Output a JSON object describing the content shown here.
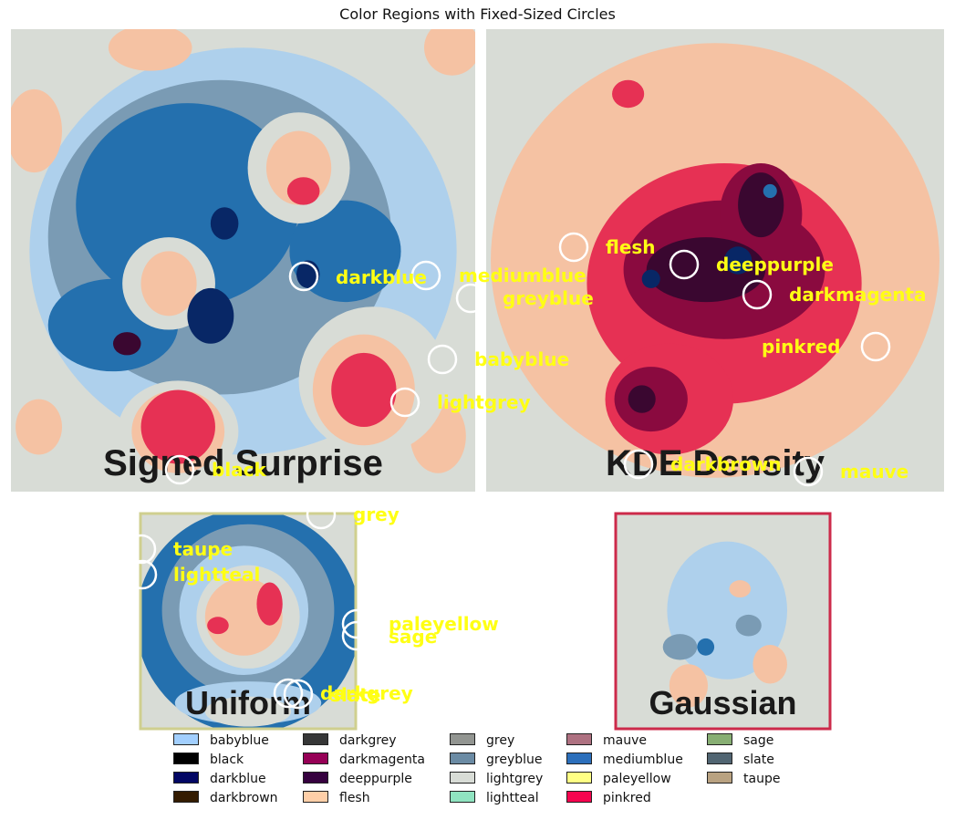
{
  "title": "Color Regions with Fixed-Sized Circles",
  "colors": {
    "babyblue": "#a2cffe",
    "black": "#000000",
    "darkblue": "#030764",
    "darkbrown": "#341c02",
    "darkgrey": "#363737",
    "darkmagenta": "#960056",
    "deeppurple": "#36013f",
    "flesh": "#ffcfa8",
    "grey": "#929591",
    "greyblue": "#6b8ba4",
    "lightgrey": "#d8dcd6",
    "lightteal": "#90e4c1",
    "mauve": "#ae7181",
    "mediumblue": "#2c6fbb",
    "paleyellow": "#ffff84",
    "pinkred": "#f5054f",
    "sage": "#87ae73",
    "slate": "#516572",
    "taupe": "#b9a281"
  },
  "chart_data": {
    "type": "image-panels",
    "panels": [
      {
        "name": "Signed Surprise",
        "border": null
      },
      {
        "name": "KDE Density",
        "border": null
      },
      {
        "name": "Uniform",
        "border": "#cfcf8f"
      },
      {
        "name": "Gaussian",
        "border": "#cc2a4a"
      }
    ],
    "callouts": [
      {
        "label": "darkblue"
      },
      {
        "label": "mediumblue"
      },
      {
        "label": "greyblue"
      },
      {
        "label": "babyblue"
      },
      {
        "label": "lightgrey"
      },
      {
        "label": "black"
      },
      {
        "label": "flesh"
      },
      {
        "label": "deeppurple"
      },
      {
        "label": "darkmagenta"
      },
      {
        "label": "pinkred"
      },
      {
        "label": "darkbrown"
      },
      {
        "label": "mauve"
      },
      {
        "label": "grey"
      },
      {
        "label": "taupe"
      },
      {
        "label": "lightteal"
      },
      {
        "label": "paleyellow"
      },
      {
        "label": "sage"
      },
      {
        "label": "darkgrey"
      },
      {
        "label": "slate"
      }
    ],
    "legend": {
      "columns": [
        [
          "babyblue",
          "black",
          "darkblue",
          "darkbrown"
        ],
        [
          "darkgrey",
          "darkmagenta",
          "deeppurple",
          "flesh"
        ],
        [
          "grey",
          "greyblue",
          "lightgrey",
          "lightteal"
        ],
        [
          "mauve",
          "mediumblue",
          "paleyellow",
          "pinkred"
        ],
        [
          "sage",
          "slate",
          "taupe"
        ]
      ]
    }
  }
}
